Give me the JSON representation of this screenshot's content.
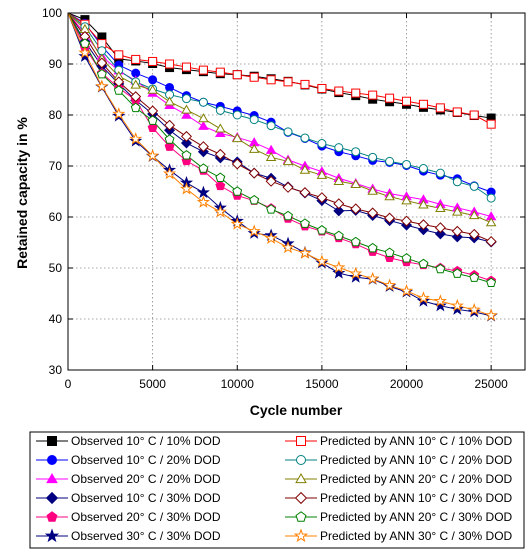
{
  "chart_data": {
    "type": "line",
    "xlabel": "Cycle number",
    "ylabel": "Retained capacity in %",
    "xlim": [
      0,
      27000
    ],
    "ylim": [
      30,
      100
    ],
    "x_ticks": [
      0,
      5000,
      10000,
      15000,
      20000,
      25000
    ],
    "y_ticks": [
      30,
      40,
      50,
      60,
      70,
      80,
      90,
      100
    ],
    "x_tick_labels": [
      "0",
      "5000",
      "10000",
      "15000",
      "20000",
      "25000"
    ],
    "y_tick_labels": [
      "30",
      "40",
      "50",
      "60",
      "70",
      "80",
      "90",
      "100"
    ],
    "grid": true,
    "legend_position": "bottom",
    "series": [
      {
        "name": "Observed 10° C / 10% DOD",
        "color": "#000000",
        "marker": "square",
        "fill": "filled",
        "x": [
          0,
          1000,
          2000,
          3000,
          4000,
          5000,
          6000,
          7000,
          8000,
          9000,
          10000,
          11000,
          12000,
          13000,
          14000,
          15000,
          16000,
          17000,
          18000,
          19000,
          20000,
          21000,
          22000,
          23000,
          24000,
          25000
        ],
        "y": [
          100,
          98.7,
          95.3,
          91.0,
          90.6,
          90.1,
          89.3,
          88.9,
          88.5,
          88.1,
          87.9,
          87.6,
          87.1,
          86.6,
          85.9,
          85.1,
          84.4,
          83.8,
          83.1,
          82.6,
          82.1,
          81.5,
          81.0,
          80.5,
          79.9,
          79.4
        ]
      },
      {
        "name": "Observed 10° C / 20% DOD",
        "color": "#0000ff",
        "marker": "circle",
        "fill": "filled",
        "x": [
          0,
          1000,
          2000,
          3000,
          4000,
          5000,
          6000,
          7000,
          8000,
          9000,
          10000,
          11000,
          12000,
          13000,
          14000,
          15000,
          16000,
          17000,
          18000,
          19000,
          20000,
          21000,
          22000,
          23000,
          24000,
          25000
        ],
        "y": [
          100,
          98.0,
          93.5,
          89.8,
          88.2,
          86.9,
          85.4,
          83.8,
          82.5,
          81.7,
          80.8,
          79.9,
          78.6,
          76.6,
          75.4,
          73.9,
          72.8,
          72.0,
          71.1,
          70.7,
          70.1,
          69.0,
          68.2,
          67.5,
          66.1,
          64.9
        ]
      },
      {
        "name": "Observed 20° C / 20% DOD",
        "color": "#ff00ff",
        "marker": "triangle-up",
        "fill": "filled",
        "x": [
          0,
          1000,
          2000,
          3000,
          4000,
          5000,
          6000,
          7000,
          8000,
          9000,
          10000,
          11000,
          12000,
          13000,
          14000,
          15000,
          16000,
          17000,
          18000,
          19000,
          20000,
          21000,
          22000,
          23000,
          24000,
          25000
        ],
        "y": [
          100,
          96.0,
          91.5,
          88.7,
          86.7,
          84.3,
          81.9,
          80.0,
          77.8,
          76.4,
          75.6,
          74.6,
          73.1,
          71.2,
          70.0,
          68.9,
          67.6,
          66.6,
          65.5,
          64.6,
          64.0,
          63.4,
          62.5,
          61.8,
          61.0,
          60.1
        ]
      },
      {
        "name": "Observed 10° C / 30% DOD",
        "color": "#000080",
        "marker": "diamond",
        "fill": "filled",
        "x": [
          0,
          1000,
          2000,
          3000,
          4000,
          5000,
          6000,
          7000,
          8000,
          9000,
          10000,
          11000,
          12000,
          13000,
          14000,
          15000,
          16000,
          17000,
          18000,
          19000,
          20000,
          21000,
          22000,
          23000,
          24000,
          25000
        ],
        "y": [
          100,
          94.4,
          89.6,
          86.1,
          82.9,
          80.2,
          77.0,
          74.5,
          72.8,
          71.6,
          70.8,
          68.6,
          67.6,
          65.9,
          64.7,
          63.2,
          61.2,
          61.3,
          60.3,
          59.3,
          58.4,
          57.5,
          56.7,
          56.1,
          55.9,
          55.1
        ]
      },
      {
        "name": "Observed 20° C / 30% DOD",
        "color": "#ff0080",
        "marker": "pentagon",
        "fill": "filled",
        "x": [
          0,
          1000,
          2000,
          3000,
          4000,
          5000,
          6000,
          7000,
          8000,
          9000,
          10000,
          11000,
          12000,
          13000,
          14000,
          15000,
          16000,
          17000,
          18000,
          19000,
          20000,
          21000,
          22000,
          23000,
          24000,
          25000
        ],
        "y": [
          100,
          93.2,
          88.2,
          85.3,
          82.9,
          77.5,
          73.8,
          71.0,
          69.1,
          66.1,
          64.2,
          63.2,
          61.7,
          59.7,
          58.2,
          57.2,
          55.9,
          54.7,
          53.2,
          52.0,
          51.2,
          50.6,
          50.0,
          49.4,
          48.6,
          47.5
        ]
      },
      {
        "name": "Observed 30° C / 30% DOD",
        "color": "#000080",
        "marker": "star",
        "fill": "filled",
        "x": [
          0,
          1000,
          2000,
          3000,
          4000,
          5000,
          6000,
          7000,
          8000,
          9000,
          10000,
          11000,
          12000,
          13000,
          14000,
          15000,
          16000,
          17000,
          18000,
          19000,
          20000,
          21000,
          22000,
          23000,
          24000,
          25000
        ],
        "y": [
          100,
          91.5,
          85.5,
          79.8,
          74.9,
          71.9,
          69.2,
          66.7,
          64.8,
          61.8,
          59.2,
          56.8,
          56.4,
          54.8,
          53.0,
          51.0,
          49.0,
          48.2,
          47.8,
          46.4,
          45.3,
          43.5,
          42.6,
          41.9,
          41.4,
          40.6
        ]
      },
      {
        "name": "Predicted by ANN 10° C / 10% DOD",
        "color": "#ff0000",
        "marker": "square",
        "fill": "open",
        "x": [
          0,
          1000,
          2000,
          3000,
          4000,
          5000,
          6000,
          7000,
          8000,
          9000,
          10000,
          11000,
          12000,
          13000,
          14000,
          15000,
          16000,
          17000,
          18000,
          19000,
          20000,
          21000,
          22000,
          23000,
          24000,
          25000
        ],
        "y": [
          100,
          97.8,
          94.0,
          91.8,
          90.9,
          90.5,
          90.0,
          89.4,
          88.8,
          88.4,
          87.9,
          87.4,
          86.9,
          86.5,
          86.0,
          85.2,
          84.7,
          84.3,
          83.9,
          83.3,
          82.7,
          82.1,
          81.4,
          80.6,
          80.0,
          78.2
        ]
      },
      {
        "name": "Predicted by ANN 10° C / 20% DOD",
        "color": "#008080",
        "marker": "circle",
        "fill": "open",
        "x": [
          0,
          1000,
          2000,
          3000,
          4000,
          5000,
          6000,
          7000,
          8000,
          9000,
          10000,
          11000,
          12000,
          13000,
          14000,
          15000,
          16000,
          17000,
          18000,
          19000,
          20000,
          21000,
          22000,
          23000,
          24000,
          25000
        ],
        "y": [
          100,
          97.3,
          92.6,
          88.8,
          86.5,
          85.1,
          84.0,
          83.2,
          82.5,
          80.9,
          80.0,
          79.1,
          77.9,
          76.7,
          75.5,
          74.4,
          73.6,
          72.8,
          71.7,
          70.9,
          70.3,
          69.5,
          68.6,
          66.9,
          66.0,
          63.7
        ]
      },
      {
        "name": "Predicted by ANN 20° C / 20% DOD",
        "color": "#808000",
        "marker": "triangle-up",
        "fill": "open",
        "x": [
          0,
          1000,
          2000,
          3000,
          4000,
          5000,
          6000,
          7000,
          8000,
          9000,
          10000,
          11000,
          12000,
          13000,
          14000,
          15000,
          16000,
          17000,
          18000,
          19000,
          20000,
          21000,
          22000,
          23000,
          24000,
          25000
        ],
        "y": [
          100,
          96.8,
          91.0,
          87.6,
          85.9,
          84.9,
          82.6,
          81.0,
          79.3,
          77.3,
          75.4,
          73.3,
          71.7,
          70.9,
          69.2,
          68.2,
          67.0,
          66.4,
          65.1,
          64.0,
          63.2,
          62.4,
          61.7,
          61.0,
          60.3,
          58.9
        ]
      },
      {
        "name": "Predicted by ANN 10° C / 30% DOD",
        "color": "#800000",
        "marker": "diamond",
        "fill": "open",
        "x": [
          0,
          1000,
          2000,
          3000,
          4000,
          5000,
          6000,
          7000,
          8000,
          9000,
          10000,
          11000,
          12000,
          13000,
          14000,
          15000,
          16000,
          17000,
          18000,
          19000,
          20000,
          21000,
          22000,
          23000,
          24000,
          25000
        ],
        "y": [
          100,
          95.4,
          90.2,
          86.5,
          83.6,
          80.8,
          78.0,
          75.8,
          73.8,
          72.3,
          70.4,
          68.6,
          67.0,
          65.8,
          64.8,
          63.8,
          62.6,
          61.6,
          60.8,
          59.8,
          59.2,
          58.5,
          57.9,
          57.2,
          56.6,
          55.2
        ]
      },
      {
        "name": "Predicted by ANN 20° C / 30% DOD",
        "color": "#008000",
        "marker": "pentagon",
        "fill": "open",
        "x": [
          0,
          1000,
          2000,
          3000,
          4000,
          5000,
          6000,
          7000,
          8000,
          9000,
          10000,
          11000,
          12000,
          13000,
          14000,
          15000,
          16000,
          17000,
          18000,
          19000,
          20000,
          21000,
          22000,
          23000,
          24000,
          25000
        ],
        "y": [
          100,
          94.0,
          88.0,
          84.8,
          81.4,
          78.9,
          75.2,
          72.1,
          69.5,
          67.7,
          65.0,
          63.3,
          61.5,
          60.2,
          58.7,
          57.4,
          56.3,
          55.1,
          53.9,
          53.0,
          51.9,
          50.8,
          49.8,
          48.9,
          48.1,
          47.1
        ]
      },
      {
        "name": "Predicted by ANN 30° C / 30% DOD",
        "color": "#ff8000",
        "marker": "star",
        "fill": "open",
        "x": [
          0,
          1000,
          2000,
          3000,
          4000,
          5000,
          6000,
          7000,
          8000,
          9000,
          10000,
          11000,
          12000,
          13000,
          14000,
          15000,
          16000,
          17000,
          18000,
          19000,
          20000,
          21000,
          22000,
          23000,
          24000,
          25000
        ],
        "y": [
          100,
          92.2,
          85.6,
          80.2,
          75.3,
          72.0,
          68.5,
          65.5,
          62.9,
          61.0,
          58.6,
          57.2,
          55.8,
          54.0,
          52.9,
          51.3,
          50.1,
          48.9,
          47.9,
          46.6,
          45.5,
          44.1,
          43.5,
          42.6,
          41.8,
          40.7
        ]
      }
    ]
  }
}
